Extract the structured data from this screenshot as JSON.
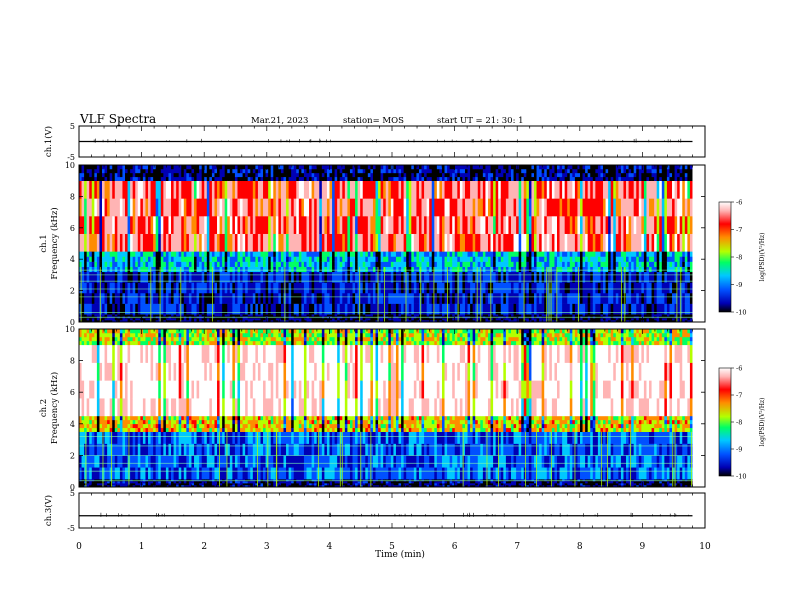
{
  "header": {
    "title": "VLF Spectra",
    "date": "Mar.21, 2023",
    "station": "station= MOS",
    "start": "start  UT  =   21: 30: 1"
  },
  "chart_data": [
    {
      "type": "line",
      "panel": "ch1-waveform",
      "ylabel": "ch.1(V)",
      "ylim": [
        -5,
        5
      ],
      "yticks": [
        "5",
        "-5"
      ],
      "xlim": [
        0,
        10
      ],
      "series": [
        {
          "x": [
            0,
            9.8
          ],
          "y": [
            0,
            0
          ]
        }
      ]
    },
    {
      "type": "heatmap",
      "panel": "ch1-spectrogram",
      "ylabel_line1": "ch.1",
      "ylabel_line2": "Frequency (kHz)",
      "ylim": [
        0,
        10
      ],
      "yticks": [
        "0",
        "2",
        "4",
        "6",
        "8",
        "10"
      ],
      "xlim": [
        0,
        9.8
      ],
      "colorbar": {
        "label": "log(PSD)(V²/Hz)",
        "ticks": [
          "-6",
          "-7",
          "-8",
          "-9",
          "-10"
        ],
        "range": [
          -10,
          -6
        ]
      },
      "bands": [
        {
          "f_low": 0.0,
          "f_high": 0.5,
          "log_psd": -9.7
        },
        {
          "f_low": 0.5,
          "f_high": 3.2,
          "log_psd": -9.3
        },
        {
          "f_low": 3.2,
          "f_high": 4.5,
          "log_psd": -8.6
        },
        {
          "f_low": 4.5,
          "f_high": 9.0,
          "log_psd": -6.8
        },
        {
          "f_low": 9.0,
          "f_high": 10.0,
          "log_psd": -9.5
        }
      ],
      "horizontal_lines_khz": [
        0.3,
        0.6,
        1.6,
        2.1,
        2.6,
        3.0,
        3.3
      ]
    },
    {
      "type": "heatmap",
      "panel": "ch2-spectrogram",
      "ylabel_line1": "ch.2",
      "ylabel_line2": "Frequency (kHz)",
      "ylim": [
        0,
        10
      ],
      "yticks": [
        "0",
        "2",
        "4",
        "6",
        "8",
        "10"
      ],
      "xlim": [
        0,
        9.8
      ],
      "colorbar": {
        "label": "log(PSD)(V²/Hz)",
        "ticks": [
          "-6",
          "-7",
          "-8",
          "-9",
          "-10"
        ],
        "range": [
          -10,
          -6
        ]
      },
      "bands": [
        {
          "f_low": 0.0,
          "f_high": 0.5,
          "log_psd": -9.6
        },
        {
          "f_low": 0.5,
          "f_high": 3.5,
          "log_psd": -9.0
        },
        {
          "f_low": 3.5,
          "f_high": 4.5,
          "log_psd": -7.6
        },
        {
          "f_low": 4.5,
          "f_high": 9.0,
          "log_psd": -6.2
        },
        {
          "f_low": 9.0,
          "f_high": 10.0,
          "log_psd": -7.8
        }
      ],
      "horizontal_lines_khz": [
        0.4,
        1.0,
        1.5,
        2.0,
        2.6,
        3.2
      ]
    },
    {
      "type": "line",
      "panel": "ch3-waveform",
      "ylabel": "ch.3(V)",
      "ylim": [
        -5,
        5
      ],
      "yticks": [
        "5",
        "-5"
      ],
      "xlim": [
        0,
        10
      ],
      "series": [
        {
          "x": [
            0,
            9.8
          ],
          "y": [
            -1.5,
            -1.5
          ]
        }
      ]
    }
  ],
  "xaxis": {
    "label": "Time  (min)",
    "ticks": [
      "0",
      "1",
      "2",
      "3",
      "4",
      "5",
      "6",
      "7",
      "8",
      "9",
      "10"
    ]
  },
  "colors": {
    "colormap": [
      "#000000",
      "#0000b4",
      "#0050ff",
      "#00c8ff",
      "#00ff64",
      "#b4ff00",
      "#ff8c00",
      "#ff0000",
      "#ffb4b4",
      "#ffffff"
    ]
  }
}
